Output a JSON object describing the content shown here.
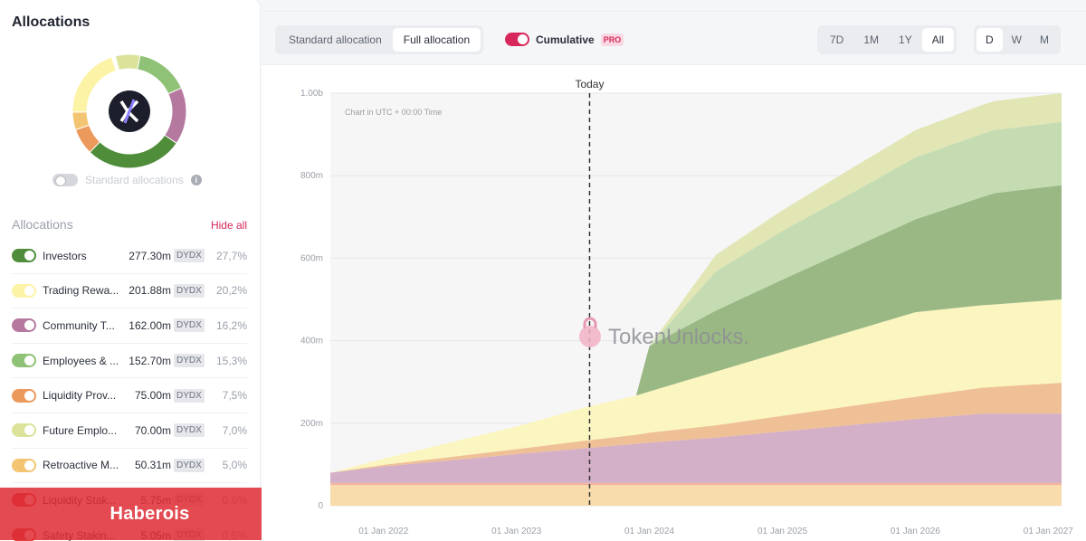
{
  "panel": {
    "title": "Allocations",
    "standard_toggle_label": "Standard allocations",
    "list_header": "Allocations",
    "hide_all": "Hide all",
    "items": [
      {
        "name": "Investors",
        "amount": "277.30m",
        "token": "DYDX",
        "pct": "27,7%",
        "color": "#4f8d3b"
      },
      {
        "name": "Trading Rewa...",
        "amount": "201.88m",
        "token": "DYDX",
        "pct": "20,2%",
        "color": "#fdf3a6"
      },
      {
        "name": "Community T...",
        "amount": "162.00m",
        "token": "DYDX",
        "pct": "16,2%",
        "color": "#b5799f"
      },
      {
        "name": "Employees & ...",
        "amount": "152.70m",
        "token": "DYDX",
        "pct": "15,3%",
        "color": "#8fc276"
      },
      {
        "name": "Liquidity Prov...",
        "amount": "75.00m",
        "token": "DYDX",
        "pct": "7,5%",
        "color": "#eb9a5c"
      },
      {
        "name": "Future Emplo...",
        "amount": "70.00m",
        "token": "DYDX",
        "pct": "7,0%",
        "color": "#dbe39a"
      },
      {
        "name": "Retroactive M...",
        "amount": "50.31m",
        "token": "DYDX",
        "pct": "5,0%",
        "color": "#f3c472"
      },
      {
        "name": "Liquidity Stak...",
        "amount": "5.75m",
        "token": "DYDX",
        "pct": "0,6%",
        "color": "#e3453f"
      },
      {
        "name": "Safety Stakin...",
        "amount": "5.05m",
        "token": "DYDX",
        "pct": "0,5%",
        "color": "#e3453f"
      }
    ]
  },
  "banner": "Haberois",
  "toolbar": {
    "alloc_tabs": [
      "Standard allocation",
      "Full allocation"
    ],
    "cumulative_label": "Cumulative",
    "pro_badge": "PRO",
    "ranges": [
      "7D",
      "1M",
      "1Y",
      "All"
    ],
    "granularity": [
      "D",
      "W",
      "M"
    ]
  },
  "chart_data": {
    "type": "area",
    "stacked": true,
    "today_label": "Today",
    "note": "Chart in UTC + 00:00 Time",
    "watermark": "TokenUnlocks.",
    "x_ticks": [
      "01 Jan 2022",
      "01 Jan 2023",
      "01 Jan 2024",
      "01 Jan 2025",
      "01 Jan 2026",
      "01 Jan 2027"
    ],
    "y_ticks": [
      "0",
      "200m",
      "400m",
      "600m",
      "800m",
      "1.00b"
    ],
    "ylim": [
      0,
      1000
    ],
    "x": [
      2021.6,
      2022.0,
      2022.5,
      2023.0,
      2023.5,
      2023.9,
      2024.0,
      2024.5,
      2025.0,
      2025.5,
      2026.0,
      2026.5,
      2026.6,
      2027.1
    ],
    "series": [
      {
        "color": "#f8dcac",
        "values": [
          50,
          50,
          50,
          50,
          50,
          50,
          50,
          50,
          50,
          50,
          50,
          50,
          50,
          50
        ]
      },
      {
        "color": "#f4b49c",
        "values": [
          5,
          5,
          5,
          5,
          5,
          5,
          5,
          5,
          5,
          5,
          5,
          5,
          5,
          5
        ]
      },
      {
        "color": "#d3b0c8",
        "values": [
          25,
          40,
          55,
          70,
          84,
          95,
          98,
          110,
          125,
          140,
          155,
          168,
          168,
          168
        ]
      },
      {
        "color": "#efbf96",
        "values": [
          0,
          4,
          8,
          12,
          18,
          22,
          24,
          30,
          38,
          46,
          54,
          63,
          65,
          75
        ]
      },
      {
        "color": "#fbf5c0",
        "values": [
          0,
          15,
          35,
          55,
          80,
          95,
          100,
          130,
          155,
          180,
          205,
          200,
          200,
          202
        ]
      },
      {
        "color": "#9ab884",
        "values": [
          0,
          0,
          0,
          0,
          0,
          0,
          110,
          148,
          175,
          200,
          225,
          262,
          270,
          277
        ]
      },
      {
        "color": "#c5dcb2",
        "values": [
          0,
          0,
          0,
          0,
          0,
          0,
          0,
          95,
          118,
          133,
          150,
          153,
          153,
          153
        ]
      },
      {
        "color": "#e2e5b4",
        "values": [
          0,
          0,
          0,
          0,
          0,
          0,
          0,
          40,
          50,
          60,
          66,
          70,
          70,
          70
        ]
      }
    ]
  }
}
